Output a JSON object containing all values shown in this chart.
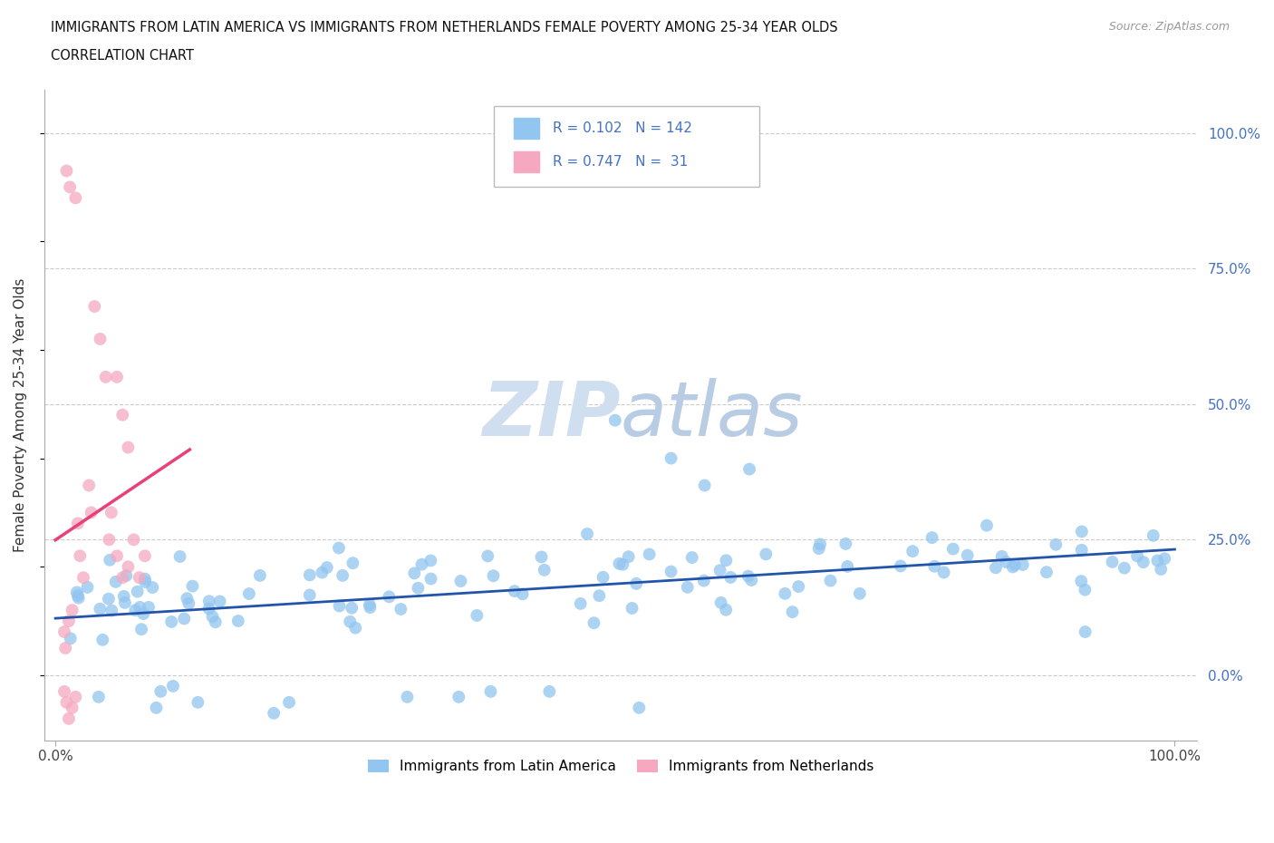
{
  "title_line1": "IMMIGRANTS FROM LATIN AMERICA VS IMMIGRANTS FROM NETHERLANDS FEMALE POVERTY AMONG 25-34 YEAR OLDS",
  "title_line2": "CORRELATION CHART",
  "source_text": "Source: ZipAtlas.com",
  "ylabel": "Female Poverty Among 25-34 Year Olds",
  "series1_label": "Immigrants from Latin America",
  "series2_label": "Immigrants from Netherlands",
  "series1_color": "#92c5f0",
  "series2_color": "#f5a8c0",
  "series1_line_color": "#2255aa",
  "series2_line_color": "#e8407a",
  "series1_R": 0.102,
  "series1_N": 142,
  "series2_R": 0.747,
  "series2_N": 31,
  "legend_R_color": "#4472c4",
  "background_color": "#ffffff",
  "watermark_color": "#d0dff0",
  "xlim": [
    -0.01,
    1.02
  ],
  "ylim": [
    -0.12,
    1.08
  ],
  "ytick_vals": [
    0.0,
    0.25,
    0.5,
    0.75,
    1.0
  ],
  "ytick_labels": [
    "0.0%",
    "25.0%",
    "50.0%",
    "75.0%",
    "100.0%"
  ],
  "xtick_vals": [
    0.0,
    1.0
  ],
  "xtick_labels": [
    "0.0%",
    "100.0%"
  ]
}
